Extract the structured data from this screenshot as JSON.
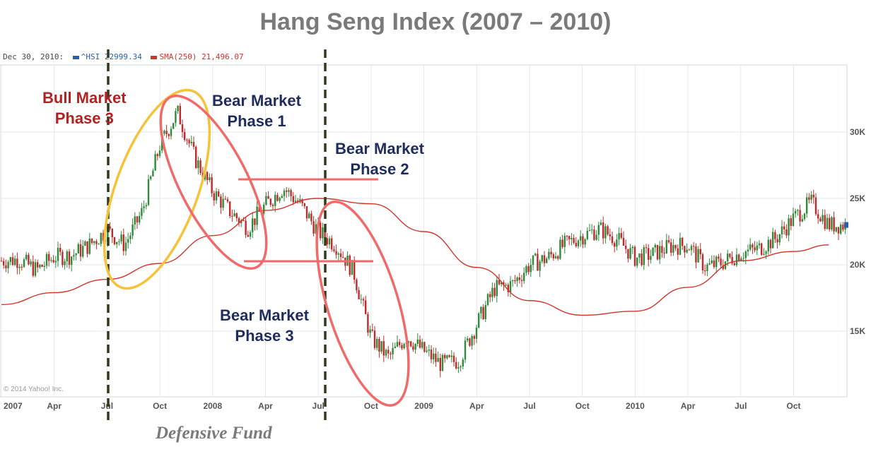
{
  "chart_data": {
    "type": "line",
    "title": "Hang Seng Index (2007 – 2010)",
    "legend": {
      "date": "Dec 30, 2010:",
      "hsi_label": "^HSI",
      "hsi_value": "22999.34",
      "sma_label": "SMA(250)",
      "sma_value": "21,496.07",
      "hsi_color": "#2a5ea8",
      "sma_color": "#d6322a"
    },
    "credit": "© 2014 Yahoo! Inc.",
    "x_ticks": [
      "2007",
      "Apr",
      "Jul",
      "Oct",
      "2008",
      "Apr",
      "Jul",
      "Oct",
      "2009",
      "Apr",
      "Jul",
      "Oct",
      "2010",
      "Apr",
      "Jul",
      "Oct"
    ],
    "y_ticks": [
      "30K",
      "25K",
      "20K",
      "15K"
    ],
    "x_range": [
      "2007-01",
      "2010-12"
    ],
    "ylim": [
      10000,
      35000
    ],
    "grid": true,
    "series": [
      {
        "name": "^HSI",
        "points": [
          [
            "2007-01",
            20300
          ],
          [
            "2007-02",
            20400
          ],
          [
            "2007-03",
            19600
          ],
          [
            "2007-04",
            20600
          ],
          [
            "2007-05",
            20700
          ],
          [
            "2007-06",
            21500
          ],
          [
            "2007-07",
            22600
          ],
          [
            "2007-08",
            21500
          ],
          [
            "2007-09",
            24000
          ],
          [
            "2007-10",
            29000
          ],
          [
            "2007-11",
            31500
          ],
          [
            "2007-12",
            28000
          ],
          [
            "2008-01",
            25500
          ],
          [
            "2008-02",
            24000
          ],
          [
            "2008-03",
            22800
          ],
          [
            "2008-04",
            24500
          ],
          [
            "2008-05",
            25800
          ],
          [
            "2008-06",
            24500
          ],
          [
            "2008-07",
            22500
          ],
          [
            "2008-08",
            21500
          ],
          [
            "2008-09",
            19500
          ],
          [
            "2008-10",
            14500
          ],
          [
            "2008-11",
            13000
          ],
          [
            "2008-12",
            14600
          ],
          [
            "2009-01",
            13500
          ],
          [
            "2009-02",
            12500
          ],
          [
            "2009-03",
            12800
          ],
          [
            "2009-04",
            15500
          ],
          [
            "2009-05",
            18200
          ],
          [
            "2009-06",
            18500
          ],
          [
            "2009-07",
            20000
          ],
          [
            "2009-08",
            20500
          ],
          [
            "2009-09",
            21500
          ],
          [
            "2009-10",
            22200
          ],
          [
            "2009-11",
            22700
          ],
          [
            "2009-12",
            21900
          ],
          [
            "2010-01",
            20500
          ],
          [
            "2010-02",
            20800
          ],
          [
            "2010-03",
            21400
          ],
          [
            "2010-04",
            21500
          ],
          [
            "2010-05",
            19800
          ],
          [
            "2010-06",
            20200
          ],
          [
            "2010-07",
            20900
          ],
          [
            "2010-08",
            21200
          ],
          [
            "2010-09",
            22000
          ],
          [
            "2010-10",
            23500
          ],
          [
            "2010-11",
            24700
          ],
          [
            "2010-12",
            23000
          ]
        ]
      },
      {
        "name": "SMA(250)",
        "points": [
          [
            "2007-01",
            17000
          ],
          [
            "2007-04",
            17900
          ],
          [
            "2007-07",
            18900
          ],
          [
            "2007-10",
            20100
          ],
          [
            "2008-01",
            22200
          ],
          [
            "2008-04",
            24100
          ],
          [
            "2008-07",
            25000
          ],
          [
            "2008-10",
            24600
          ],
          [
            "2009-01",
            22500
          ],
          [
            "2009-04",
            19800
          ],
          [
            "2009-07",
            17300
          ],
          [
            "2009-10",
            16200
          ],
          [
            "2010-01",
            16500
          ],
          [
            "2010-04",
            18300
          ],
          [
            "2010-07",
            20300
          ],
          [
            "2010-10",
            21000
          ],
          [
            "2010-12",
            21500
          ]
        ]
      }
    ],
    "annotations": [
      {
        "id": "bull3",
        "line1": "Bull Market",
        "line2": "Phase 3",
        "color": "#b22222"
      },
      {
        "id": "bear1",
        "line1": "Bear Market",
        "line2": "Phase 1",
        "color": "#1f2d5e"
      },
      {
        "id": "bear2",
        "line1": "Bear Market",
        "line2": "Phase 2",
        "color": "#1f2d5e"
      },
      {
        "id": "bear3",
        "line1": "Bear Market",
        "line2": "Phase 3",
        "color": "#1f2d5e"
      }
    ],
    "caption": "Defensive Fund",
    "colors": {
      "ellipse_bull": "#f5c23a",
      "ellipse_bear": "#f06a6a",
      "phase_lines": "#2f3a1a",
      "candle_up": "#2f8a3a",
      "candle_down": "#c02a2a"
    }
  }
}
